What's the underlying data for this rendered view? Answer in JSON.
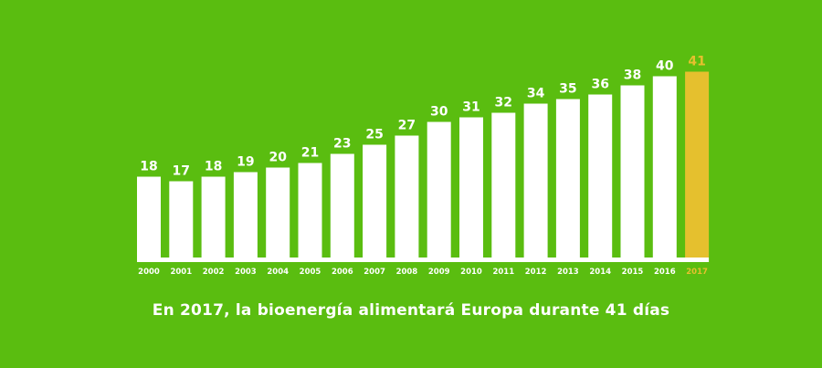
{
  "colors": {
    "background": "#5abd10",
    "bar": "#ffffff",
    "highlight": "#e5c02e",
    "baseline": "#ffffff",
    "text": "#ffffff"
  },
  "caption": "En 2017, la bioenergía alimentará Europa durante 41 días",
  "chart_data": {
    "type": "bar",
    "categories": [
      "2000",
      "2001",
      "2002",
      "2003",
      "2004",
      "2005",
      "2006",
      "2007",
      "2008",
      "2009",
      "2010",
      "2011",
      "2012",
      "2013",
      "2014",
      "2015",
      "2016",
      "2017"
    ],
    "values": [
      18,
      17,
      18,
      19,
      20,
      21,
      23,
      25,
      27,
      30,
      31,
      32,
      34,
      35,
      36,
      38,
      40,
      41
    ],
    "highlighted_category": "2017",
    "title": "",
    "xlabel": "",
    "ylabel": "",
    "ylim": [
      0,
      41
    ],
    "grid": false,
    "data_labels": true
  }
}
